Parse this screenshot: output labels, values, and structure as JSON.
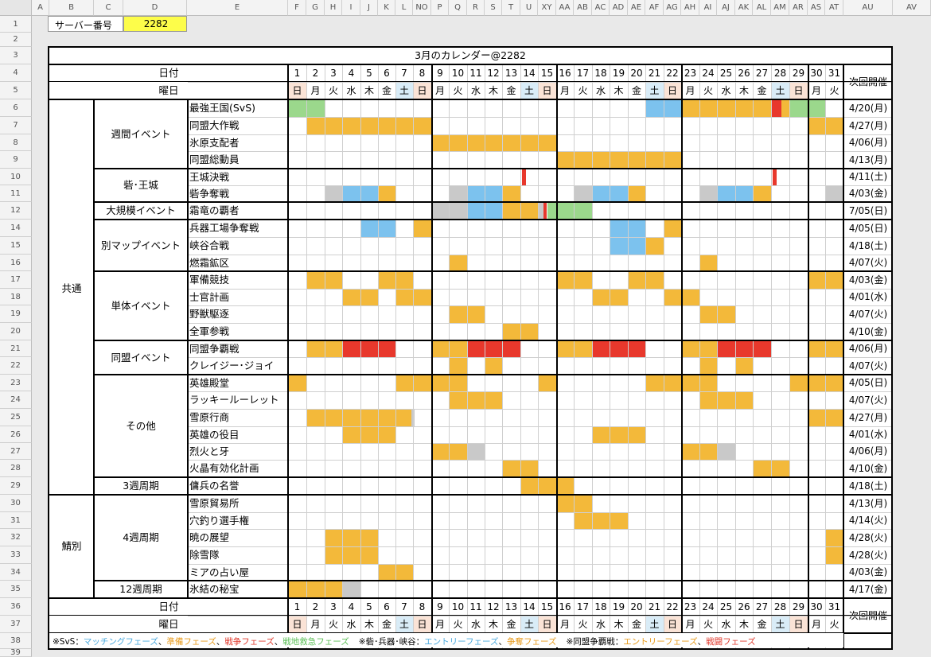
{
  "colors": {
    "yellow": "#f3b93a",
    "blue": "#7cc2ee",
    "red": "#e8382c",
    "green": "#9bd88c",
    "gray": "#c9c9c9",
    "sat_bg": "#d9ecf7",
    "sun_bg": "#fae3d6",
    "server_bg": "#fdfd4a"
  },
  "col_letters": [
    "A",
    "B",
    "C",
    "D",
    "E",
    "F",
    "G",
    "H",
    "I",
    "J",
    "K",
    "L",
    "NO",
    "P",
    "Q",
    "R",
    "S",
    "T",
    "U",
    "XY",
    "AA",
    "AB",
    "AC",
    "AD",
    "AE",
    "AF",
    "AG",
    "AH",
    "AI",
    "AJ",
    "AK",
    "AL",
    "AM",
    "AR",
    "AS",
    "AT",
    "AU",
    "AV"
  ],
  "row_numbers": [
    "1",
    "2",
    "3",
    "4",
    "5",
    "6",
    "7",
    "8",
    "9",
    "10",
    "11",
    "12",
    "14",
    "15",
    "16",
    "17",
    "18",
    "19",
    "20",
    "21",
    "22",
    "23",
    "24",
    "25",
    "26",
    "27",
    "28",
    "29",
    "30",
    "31",
    "32",
    "33",
    "34",
    "35",
    "36",
    "37",
    "38",
    "39"
  ],
  "server": {
    "label": "サーバー番号",
    "value": "2282"
  },
  "title": "3月のカレンダー@2282",
  "date_header": "日付",
  "weekday_header": "曜日",
  "next_header": "次回開催",
  "days": [
    "1",
    "2",
    "3",
    "4",
    "5",
    "6",
    "7",
    "8",
    "9",
    "10",
    "11",
    "12",
    "13",
    "14",
    "15",
    "16",
    "17",
    "18",
    "19",
    "20",
    "21",
    "22",
    "23",
    "24",
    "25",
    "26",
    "27",
    "28",
    "29",
    "30",
    "31"
  ],
  "weekdays": [
    "日",
    "月",
    "火",
    "水",
    "木",
    "金",
    "土",
    "日",
    "月",
    "火",
    "水",
    "木",
    "金",
    "土",
    "日",
    "月",
    "火",
    "水",
    "木",
    "金",
    "土",
    "日",
    "月",
    "火",
    "水",
    "木",
    "金",
    "土",
    "日",
    "月",
    "火"
  ],
  "categories": [
    {
      "label": "共通"
    },
    {
      "label": "鯖別"
    }
  ],
  "groups": [
    {
      "label": "週間イベント"
    },
    {
      "label": "砦･王城"
    },
    {
      "label": "大規模イベント"
    },
    {
      "label": "別マップイベント"
    },
    {
      "label": "単体イベント"
    },
    {
      "label": "同盟イベント"
    },
    {
      "label": "その他"
    },
    {
      "label": "3週周期"
    },
    {
      "label": "4週周期"
    },
    {
      "label": "12週周期"
    }
  ],
  "events": [
    {
      "name": "最強王国(SvS)",
      "next": "4/20(月)",
      "bars": [
        [
          1,
          2,
          "green"
        ],
        [
          21,
          22,
          "blue"
        ],
        [
          23,
          28,
          "yellow"
        ],
        [
          28.05,
          28.55,
          "red"
        ],
        [
          29,
          30,
          "green"
        ]
      ]
    },
    {
      "name": "同盟大作戦",
      "next": "4/27(月)",
      "bars": [
        [
          2,
          8,
          "yellow"
        ],
        [
          30,
          31,
          "yellow"
        ]
      ]
    },
    {
      "name": "氷原支配者",
      "next": "4/06(月)",
      "bars": [
        [
          9,
          15,
          "yellow"
        ]
      ]
    },
    {
      "name": "同盟総動員",
      "next": "4/13(月)",
      "bars": [
        [
          16,
          22,
          "yellow"
        ]
      ]
    },
    {
      "name": "王城決戦",
      "next": "4/11(土)",
      "bars": [
        [
          14.1,
          14.3,
          "red"
        ],
        [
          28.1,
          28.3,
          "red"
        ]
      ]
    },
    {
      "name": "砦争奪戦",
      "next": "4/03(金)",
      "bars": [
        [
          3,
          3,
          "gray"
        ],
        [
          4,
          5,
          "blue"
        ],
        [
          6,
          6,
          "yellow"
        ],
        [
          10,
          10,
          "gray"
        ],
        [
          11,
          12,
          "blue"
        ],
        [
          13,
          13,
          "yellow"
        ],
        [
          17,
          17,
          "gray"
        ],
        [
          18,
          19,
          "blue"
        ],
        [
          20,
          20,
          "yellow"
        ],
        [
          24,
          24,
          "gray"
        ],
        [
          25,
          26,
          "blue"
        ],
        [
          27,
          27,
          "yellow"
        ],
        [
          31,
          31,
          "gray"
        ]
      ]
    },
    {
      "name": "霜竜の覇者",
      "next": "7/05(日)",
      "bars": [
        [
          9,
          10,
          "gray"
        ],
        [
          11,
          12,
          "blue"
        ],
        [
          13,
          14,
          "yellow"
        ],
        [
          15,
          15.3,
          "gray"
        ],
        [
          15.3,
          15.5,
          "red"
        ],
        [
          15.5,
          17,
          "green"
        ]
      ]
    },
    {
      "name": "兵器工場争奪戦",
      "next": "4/05(日)",
      "bars": [
        [
          5,
          6,
          "blue"
        ],
        [
          8,
          8,
          "yellow"
        ],
        [
          19,
          20,
          "blue"
        ],
        [
          22,
          22,
          "yellow"
        ]
      ]
    },
    {
      "name": "峡谷合戦",
      "next": "4/18(土)",
      "bars": [
        [
          19,
          20,
          "blue"
        ],
        [
          21,
          21,
          "yellow"
        ]
      ]
    },
    {
      "name": "燃霜鉱区",
      "next": "4/07(火)",
      "bars": [
        [
          10,
          10,
          "yellow"
        ],
        [
          24,
          24,
          "yellow"
        ]
      ]
    },
    {
      "name": "軍備競技",
      "next": "4/03(金)",
      "bars": [
        [
          2,
          3,
          "yellow"
        ],
        [
          6,
          7,
          "yellow"
        ],
        [
          16,
          17,
          "yellow"
        ],
        [
          20,
          21,
          "yellow"
        ],
        [
          30,
          31,
          "yellow"
        ]
      ]
    },
    {
      "name": "士官計画",
      "next": "4/01(水)",
      "bars": [
        [
          4,
          5,
          "yellow"
        ],
        [
          7,
          8,
          "yellow"
        ],
        [
          18,
          19,
          "yellow"
        ],
        [
          22,
          23,
          "yellow"
        ]
      ]
    },
    {
      "name": "野獣駆逐",
      "next": "4/07(火)",
      "bars": [
        [
          10,
          11,
          "yellow"
        ],
        [
          24,
          25,
          "yellow"
        ]
      ]
    },
    {
      "name": "全軍参戦",
      "next": "4/10(金)",
      "bars": [
        [
          13,
          14,
          "yellow"
        ]
      ]
    },
    {
      "name": "同盟争覇戦",
      "next": "4/06(月)",
      "bars": [
        [
          2,
          3,
          "yellow"
        ],
        [
          4,
          6,
          "red"
        ],
        [
          9,
          10,
          "yellow"
        ],
        [
          11,
          13,
          "red"
        ],
        [
          16,
          17,
          "yellow"
        ],
        [
          18,
          20,
          "red"
        ],
        [
          23,
          24,
          "yellow"
        ],
        [
          25,
          27,
          "red"
        ],
        [
          30,
          31,
          "yellow"
        ]
      ]
    },
    {
      "name": "クレイジー･ジョイ",
      "next": "4/07(火)",
      "bars": [
        [
          10,
          10,
          "yellow"
        ],
        [
          12,
          12,
          "yellow"
        ],
        [
          24,
          24,
          "yellow"
        ],
        [
          26,
          26,
          "yellow"
        ]
      ]
    },
    {
      "name": "英雄殿堂",
      "next": "4/05(日)",
      "bars": [
        [
          1,
          1,
          "yellow"
        ],
        [
          7,
          10,
          "yellow"
        ],
        [
          15,
          15,
          "yellow"
        ],
        [
          21,
          24,
          "yellow"
        ],
        [
          29,
          31,
          "yellow"
        ]
      ]
    },
    {
      "name": "ラッキールーレット",
      "next": "4/07(火)",
      "bars": [
        [
          10,
          12,
          "yellow"
        ],
        [
          24,
          26,
          "yellow"
        ]
      ]
    },
    {
      "name": "雪原行商",
      "next": "4/27(月)",
      "bars": [
        [
          2,
          7.9,
          "yellow"
        ],
        [
          7.9,
          8.1,
          "gray"
        ],
        [
          30,
          31,
          "yellow"
        ]
      ]
    },
    {
      "name": "英雄の役目",
      "next": "4/01(水)",
      "bars": [
        [
          4,
          6,
          "yellow"
        ],
        [
          18,
          20,
          "yellow"
        ]
      ]
    },
    {
      "name": "烈火と牙",
      "next": "4/06(月)",
      "bars": [
        [
          9,
          10,
          "yellow"
        ],
        [
          11,
          11,
          "gray"
        ],
        [
          23,
          24,
          "yellow"
        ],
        [
          25,
          25,
          "gray"
        ]
      ]
    },
    {
      "name": "火晶有効化計画",
      "next": "4/10(金)",
      "bars": [
        [
          13,
          14,
          "yellow"
        ],
        [
          27,
          28,
          "yellow"
        ]
      ]
    },
    {
      "name": "傭兵の名誉",
      "next": "4/18(土)",
      "bars": [
        [
          14,
          16,
          "yellow"
        ]
      ]
    },
    {
      "name": "雪原貿易所",
      "next": "4/13(月)",
      "bars": [
        [
          16,
          17,
          "yellow"
        ]
      ]
    },
    {
      "name": "穴釣り選手権",
      "next": "4/14(火)",
      "bars": [
        [
          17,
          19,
          "yellow"
        ]
      ]
    },
    {
      "name": "暁の展望",
      "next": "4/28(火)",
      "bars": [
        [
          3,
          5,
          "yellow"
        ],
        [
          31,
          31,
          "yellow"
        ]
      ]
    },
    {
      "name": "除雪隊",
      "next": "4/28(火)",
      "bars": [
        [
          3,
          5,
          "yellow"
        ],
        [
          31,
          31,
          "yellow"
        ]
      ]
    },
    {
      "name": "ミアの占い屋",
      "next": "4/03(金)",
      "bars": [
        [
          6,
          7,
          "yellow"
        ]
      ]
    },
    {
      "name": "氷結の秘宝",
      "next": "4/17(金)",
      "bars": [
        [
          1,
          3,
          "yellow"
        ],
        [
          4,
          4,
          "gray"
        ]
      ]
    }
  ],
  "legend": {
    "p1": "※SvS：",
    "p2": "マッチングフェーズ",
    "p3": "、",
    "p4": "準備フェーズ",
    "p5": "、",
    "p6": "戦争フェーズ",
    "p7": "、",
    "p8": "戦地救急フェーズ",
    "p9": "※砦･兵器･峡谷：",
    "p10": "エントリーフェーズ",
    "p11": "、",
    "p12": "争奪フェーズ",
    "p13": "※同盟争覇戦：",
    "p14": "エントリーフェーズ",
    "p15": "、",
    "p16": "戦闘フェーズ"
  }
}
